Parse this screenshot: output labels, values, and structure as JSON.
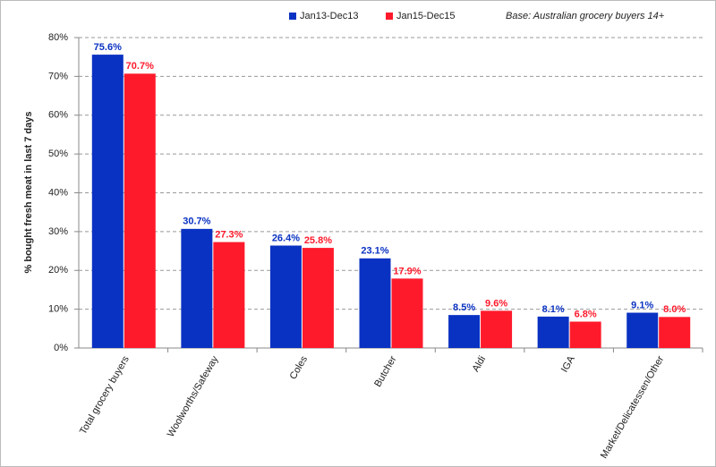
{
  "chart_data": {
    "type": "bar",
    "annotation": "Base: Australian grocery buyers 14+",
    "y_label": "% bought fresh meat in last 7 days",
    "categories": [
      "Total grocery buyers",
      "Woolworths/Safeway",
      "Coles",
      "Butcher",
      "Aldi",
      "IGA",
      "Market/Delicatessen/Other"
    ],
    "series": [
      {
        "name": "Jan13-Dec13",
        "color": "#0a32c2",
        "values": [
          75.6,
          30.7,
          26.4,
          23.1,
          8.5,
          8.1,
          9.1
        ],
        "value_labels": [
          "75.6%",
          "30.7%",
          "26.4%",
          "23.1%",
          "8.5%",
          "8.1%",
          "9.1%"
        ]
      },
      {
        "name": "Jan15-Dec15",
        "color": "#ff1a2b",
        "values": [
          70.7,
          27.3,
          25.8,
          17.9,
          9.6,
          6.8,
          8.0
        ],
        "value_labels": [
          "70.7%",
          "27.3%",
          "25.8%",
          "17.9%",
          "9.6%",
          "6.8%",
          "8.0%"
        ]
      }
    ],
    "ylim": [
      0,
      80
    ],
    "yticks": [
      {
        "value": 0,
        "label": "0%"
      },
      {
        "value": 10,
        "label": "10%"
      },
      {
        "value": 20,
        "label": "20%"
      },
      {
        "value": 30,
        "label": "30%"
      },
      {
        "value": 40,
        "label": "40%"
      },
      {
        "value": 50,
        "label": "50%"
      },
      {
        "value": 60,
        "label": "60%"
      },
      {
        "value": 70,
        "label": "70%"
      },
      {
        "value": 80,
        "label": "80%"
      }
    ],
    "grid": true
  }
}
